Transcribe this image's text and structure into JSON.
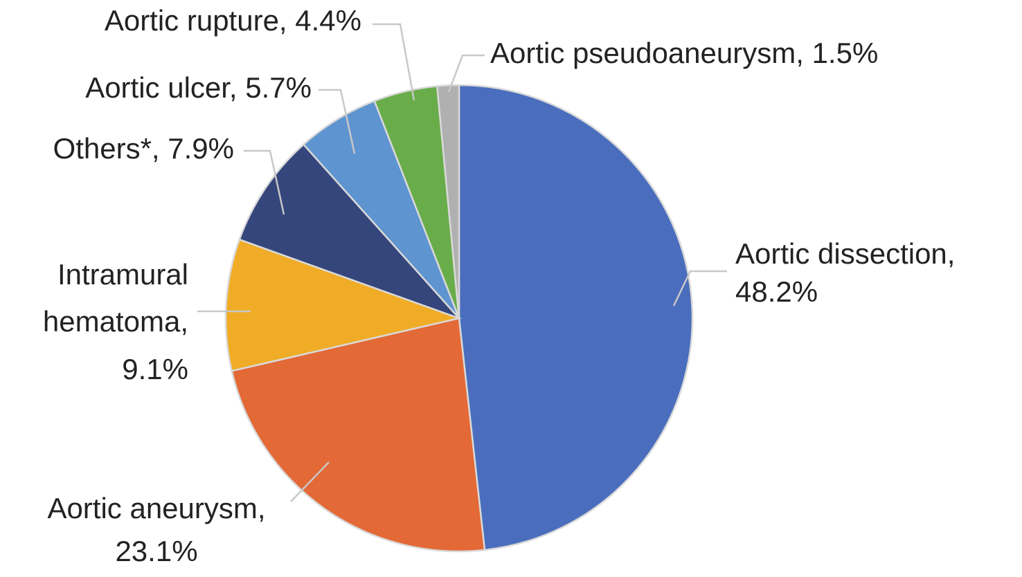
{
  "chart_data": {
    "type": "pie",
    "categories": [
      "Aortic dissection",
      "Aortic aneurysm",
      "Intramural hematoma",
      "Others*",
      "Aortic ulcer",
      "Aortic rupture",
      "Aortic pseudoaneurysm"
    ],
    "values": [
      48.2,
      23.1,
      9.1,
      7.9,
      5.7,
      4.4,
      1.5
    ],
    "value_labels": [
      [
        "Aortic dissection,",
        "48.2%"
      ],
      [
        "Aortic aneurysm,",
        "23.1%"
      ],
      [
        "Intramural",
        "hematoma,",
        "9.1%"
      ],
      [
        "Others*, 7.9%"
      ],
      [
        "Aortic ulcer, 5.7%"
      ],
      [
        "Aortic rupture, 4.4%"
      ],
      [
        "Aortic pseudoaneurysm, 1.5%"
      ]
    ],
    "colors": [
      "#4a6ebd",
      "#e36936",
      "#f0ac26",
      "#34467b",
      "#5e94cf",
      "#69ad4a",
      "#b0b0b0"
    ]
  }
}
